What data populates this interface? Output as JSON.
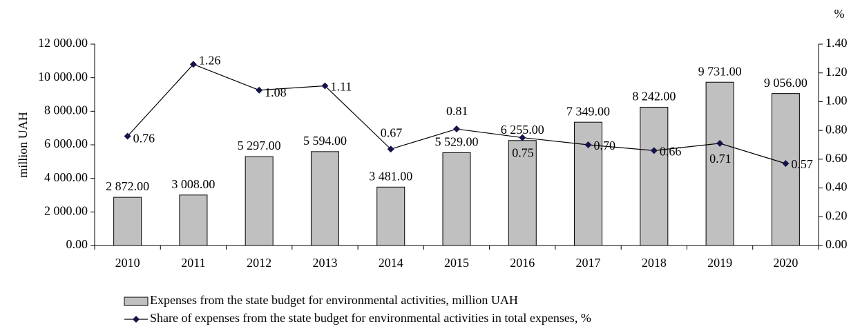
{
  "chart_data": {
    "type": "bar",
    "categories": [
      "2010",
      "2011",
      "2012",
      "2013",
      "2014",
      "2015",
      "2016",
      "2017",
      "2018",
      "2019",
      "2020"
    ],
    "ylabel": "million UAH",
    "y2label": "%",
    "ylim": [
      0,
      12000
    ],
    "yticks": [
      {
        "value": 0,
        "label": "0.00"
      },
      {
        "value": 2000,
        "label": "2 000.00"
      },
      {
        "value": 4000,
        "label": "4 000.00"
      },
      {
        "value": 6000,
        "label": "6 000.00"
      },
      {
        "value": 8000,
        "label": "8 000.00"
      },
      {
        "value": 10000,
        "label": "10 000.00"
      },
      {
        "value": 12000,
        "label": "12 000.00"
      }
    ],
    "y2lim": [
      0,
      1.4
    ],
    "y2ticks": [
      {
        "value": 0,
        "label": "0.00"
      },
      {
        "value": 0.2,
        "label": "0.20"
      },
      {
        "value": 0.4,
        "label": "0.40"
      },
      {
        "value": 0.6,
        "label": "0.60"
      },
      {
        "value": 0.8,
        "label": "0.80"
      },
      {
        "value": 1.0,
        "label": "1.00"
      },
      {
        "value": 1.2,
        "label": "1.20"
      },
      {
        "value": 1.4,
        "label": "1.40"
      }
    ],
    "series": [
      {
        "name": "Expenses from the state budget for environmental activities, million UAH",
        "type": "bar",
        "color": "#c0c0c0",
        "values": [
          2872,
          3008,
          5297,
          5594,
          3481,
          5529,
          6255,
          7349,
          8242,
          9731,
          9056
        ],
        "value_labels": [
          "2 872.00",
          "3 008.00",
          "5 297.00",
          "5 594.00",
          "3 481.00",
          "5 529.00",
          "6 255.00",
          "7 349.00",
          "8 242.00",
          "9 731.00",
          "9 056.00"
        ]
      },
      {
        "name": "Share of expenses from the state budget for environmental activities in total expenses, %",
        "type": "line",
        "axis": "y2",
        "color": "#000000",
        "marker_color": "#14144a",
        "values": [
          0.76,
          1.26,
          1.08,
          1.11,
          0.67,
          0.81,
          0.75,
          0.7,
          0.66,
          0.71,
          0.57
        ],
        "value_labels": [
          "0.76",
          "1.26",
          "1.08",
          "1.11",
          "0.67",
          "0.81",
          "0.75",
          "0.70",
          "0.66",
          "0.71",
          "0.57"
        ]
      }
    ]
  }
}
